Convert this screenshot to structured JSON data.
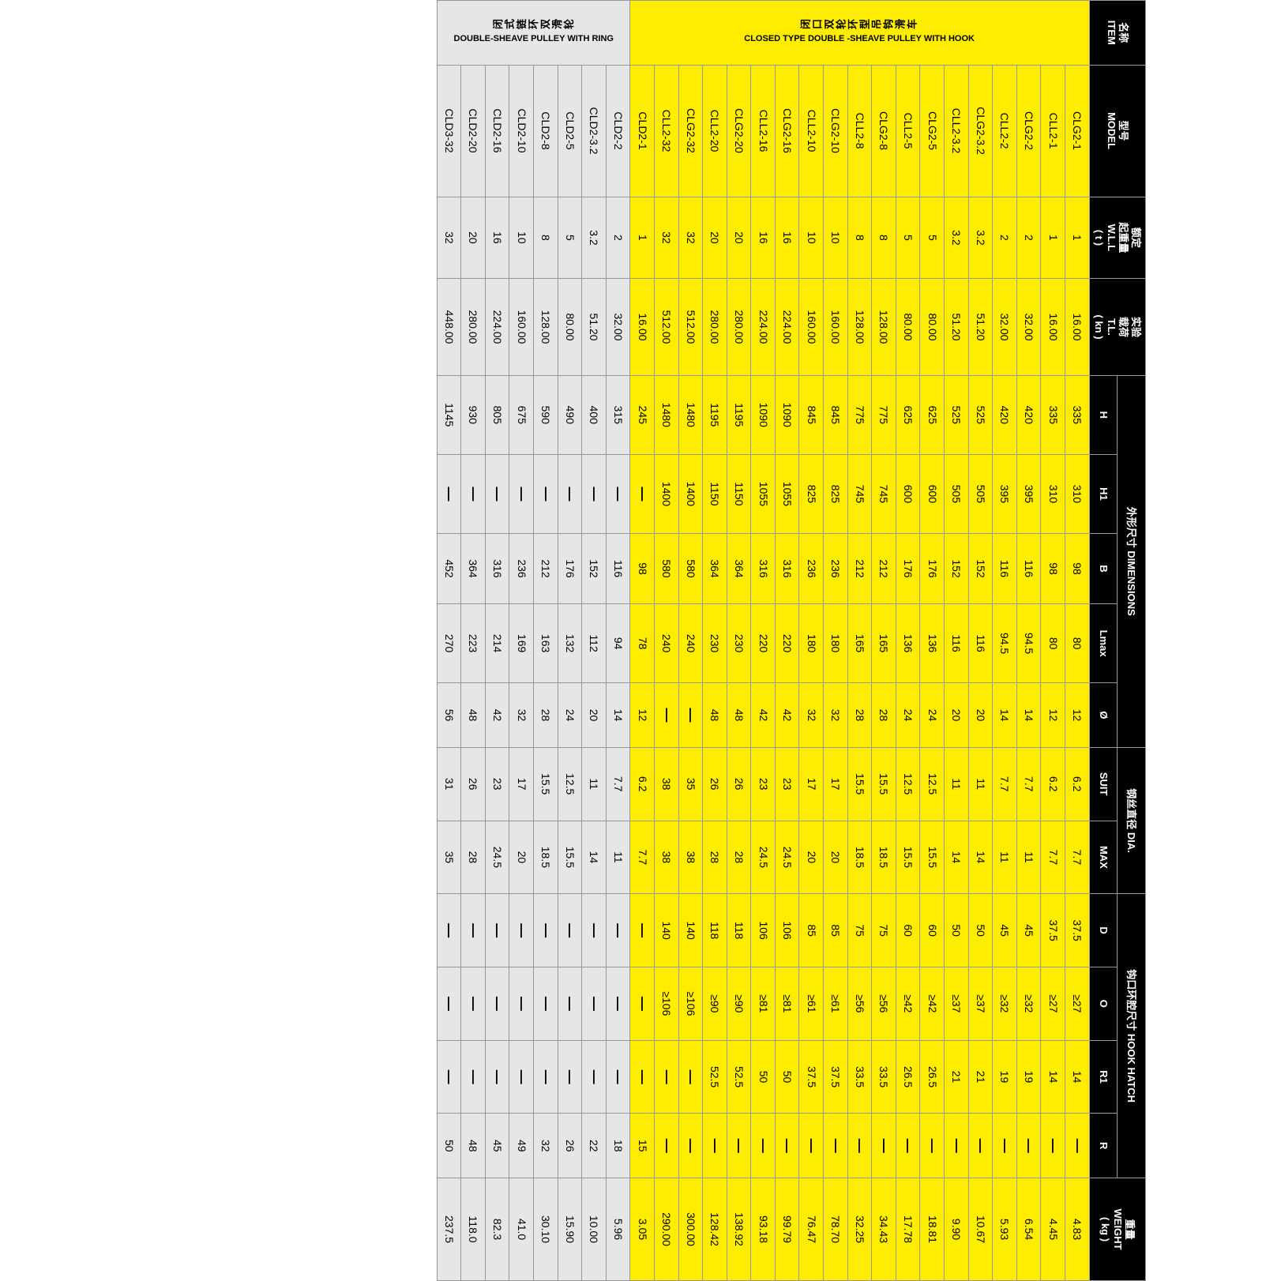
{
  "colors": {
    "header_bg": "#000000",
    "header_fg": "#ffffff",
    "section_yellow": "#ffed00",
    "section_gray": "#e6e6e6",
    "border": "#999999"
  },
  "header": {
    "item": {
      "cn": "名称",
      "en": "ITEM"
    },
    "model": {
      "cn": "型号",
      "en": "MODEL"
    },
    "wll": {
      "cn": "额定\n起重量",
      "en": "W.L.L\n( t )"
    },
    "tl": {
      "cn": "实验\n载荷",
      "en": "T.L.\n( kn )"
    },
    "dims": {
      "cn": "外形尺寸",
      "en": "DIMENSIONS"
    },
    "H": "H",
    "H1": "H1",
    "B": "B",
    "Lmax": "Lmax",
    "dia": "Ø",
    "wire": {
      "cn": "钢丝直径",
      "en": "DIA."
    },
    "suit": "SUIT",
    "max": "MAX",
    "hook": {
      "cn": "钩口环腔尺寸",
      "en": "HOOK HATCH"
    },
    "D": "D",
    "O": "O",
    "R1": "R1",
    "R": "R",
    "weight": {
      "cn": "重量",
      "en": "WEIGHT\n( kg )"
    }
  },
  "sections": [
    {
      "class": "y",
      "label_cn": "闭口双轮环型吊钩滑车",
      "label_en": "CLOSED TYPE DOUBLE -SHEAVE PULLEY WITH HOOK",
      "rows": [
        {
          "model": "CLG2-1",
          "wll": "1",
          "tl": "16.00",
          "H": "335",
          "H1": "310",
          "B": "98",
          "Lmax": "80",
          "dia": "12",
          "suit": "6.2",
          "max": "7.7",
          "D": "37.5",
          "O": "≥27",
          "R1": "14",
          "R": "—",
          "wt": "4.83"
        },
        {
          "model": "CLL2-1",
          "wll": "1",
          "tl": "16.00",
          "H": "335",
          "H1": "310",
          "B": "98",
          "Lmax": "80",
          "dia": "12",
          "suit": "6.2",
          "max": "7.7",
          "D": "37.5",
          "O": "≥27",
          "R1": "14",
          "R": "—",
          "wt": "4.45"
        },
        {
          "model": "CLG2-2",
          "wll": "2",
          "tl": "32.00",
          "H": "420",
          "H1": "395",
          "B": "116",
          "Lmax": "94.5",
          "dia": "14",
          "suit": "7.7",
          "max": "11",
          "D": "45",
          "O": "≥32",
          "R1": "19",
          "R": "—",
          "wt": "6.54"
        },
        {
          "model": "CLL2-2",
          "wll": "2",
          "tl": "32.00",
          "H": "420",
          "H1": "395",
          "B": "116",
          "Lmax": "94.5",
          "dia": "14",
          "suit": "7.7",
          "max": "11",
          "D": "45",
          "O": "≥32",
          "R1": "19",
          "R": "—",
          "wt": "5.93"
        },
        {
          "model": "CLG2-3.2",
          "wll": "3.2",
          "tl": "51.20",
          "H": "525",
          "H1": "505",
          "B": "152",
          "Lmax": "116",
          "dia": "20",
          "suit": "11",
          "max": "14",
          "D": "50",
          "O": "≥37",
          "R1": "21",
          "R": "—",
          "wt": "10.67"
        },
        {
          "model": "CLL2-3.2",
          "wll": "3.2",
          "tl": "51.20",
          "H": "525",
          "H1": "505",
          "B": "152",
          "Lmax": "116",
          "dia": "20",
          "suit": "11",
          "max": "14",
          "D": "50",
          "O": "≥37",
          "R1": "21",
          "R": "—",
          "wt": "9.90"
        },
        {
          "model": "CLG2-5",
          "wll": "5",
          "tl": "80.00",
          "H": "625",
          "H1": "600",
          "B": "176",
          "Lmax": "136",
          "dia": "24",
          "suit": "12.5",
          "max": "15.5",
          "D": "60",
          "O": "≥42",
          "R1": "26.5",
          "R": "—",
          "wt": "18.81"
        },
        {
          "model": "CLL2-5",
          "wll": "5",
          "tl": "80.00",
          "H": "625",
          "H1": "600",
          "B": "176",
          "Lmax": "136",
          "dia": "24",
          "suit": "12.5",
          "max": "15.5",
          "D": "60",
          "O": "≥42",
          "R1": "26.5",
          "R": "—",
          "wt": "17.78"
        },
        {
          "model": "CLG2-8",
          "wll": "8",
          "tl": "128.00",
          "H": "775",
          "H1": "745",
          "B": "212",
          "Lmax": "165",
          "dia": "28",
          "suit": "15.5",
          "max": "18.5",
          "D": "75",
          "O": "≥56",
          "R1": "33.5",
          "R": "—",
          "wt": "34.43"
        },
        {
          "model": "CLL2-8",
          "wll": "8",
          "tl": "128.00",
          "H": "775",
          "H1": "745",
          "B": "212",
          "Lmax": "165",
          "dia": "28",
          "suit": "15.5",
          "max": "18.5",
          "D": "75",
          "O": "≥56",
          "R1": "33.5",
          "R": "—",
          "wt": "32.25"
        },
        {
          "model": "CLG2-10",
          "wll": "10",
          "tl": "160.00",
          "H": "845",
          "H1": "825",
          "B": "236",
          "Lmax": "180",
          "dia": "32",
          "suit": "17",
          "max": "20",
          "D": "85",
          "O": "≥61",
          "R1": "37.5",
          "R": "—",
          "wt": "78.70"
        },
        {
          "model": "CLL2-10",
          "wll": "10",
          "tl": "160.00",
          "H": "845",
          "H1": "825",
          "B": "236",
          "Lmax": "180",
          "dia": "32",
          "suit": "17",
          "max": "20",
          "D": "85",
          "O": "≥61",
          "R1": "37.5",
          "R": "—",
          "wt": "76.47"
        },
        {
          "model": "CLG2-16",
          "wll": "16",
          "tl": "224.00",
          "H": "1090",
          "H1": "1055",
          "B": "316",
          "Lmax": "220",
          "dia": "42",
          "suit": "23",
          "max": "24.5",
          "D": "106",
          "O": "≥81",
          "R1": "50",
          "R": "—",
          "wt": "99.79"
        },
        {
          "model": "CLL2-16",
          "wll": "16",
          "tl": "224.00",
          "H": "1090",
          "H1": "1055",
          "B": "316",
          "Lmax": "220",
          "dia": "42",
          "suit": "23",
          "max": "24.5",
          "D": "106",
          "O": "≥81",
          "R1": "50",
          "R": "—",
          "wt": "93.18"
        },
        {
          "model": "CLG2-20",
          "wll": "20",
          "tl": "280.00",
          "H": "1195",
          "H1": "1150",
          "B": "364",
          "Lmax": "230",
          "dia": "48",
          "suit": "26",
          "max": "28",
          "D": "118",
          "O": "≥90",
          "R1": "52.5",
          "R": "—",
          "wt": "138.92"
        },
        {
          "model": "CLL2-20",
          "wll": "20",
          "tl": "280.00",
          "H": "1195",
          "H1": "1150",
          "B": "364",
          "Lmax": "230",
          "dia": "48",
          "suit": "26",
          "max": "28",
          "D": "118",
          "O": "≥90",
          "R1": "52.5",
          "R": "—",
          "wt": "128.42"
        },
        {
          "model": "CLG2-32",
          "wll": "32",
          "tl": "512.00",
          "H": "1480",
          "H1": "1400",
          "B": "580",
          "Lmax": "240",
          "dia": "—",
          "suit": "35",
          "max": "38",
          "D": "140",
          "O": "≥106",
          "R1": "—",
          "R": "—",
          "wt": "300.00"
        },
        {
          "model": "CLL2-32",
          "wll": "32",
          "tl": "512.00",
          "H": "1480",
          "H1": "1400",
          "B": "580",
          "Lmax": "240",
          "dia": "—",
          "suit": "38",
          "max": "38",
          "D": "140",
          "O": "≥106",
          "R1": "—",
          "R": "—",
          "wt": "290.00"
        },
        {
          "model": "CLD2-1",
          "wll": "1",
          "tl": "16.00",
          "H": "245",
          "H1": "—",
          "B": "98",
          "Lmax": "78",
          "dia": "12",
          "suit": "6.2",
          "max": "7.7",
          "D": "—",
          "O": "—",
          "R1": "—",
          "R": "15",
          "wt": "3.05"
        }
      ]
    },
    {
      "class": "g",
      "label_cn": "闭式链环双滑轮",
      "label_en": "DOUBLE-SHEAVE PULLEY WITH RING",
      "rows": [
        {
          "model": "CLD2-2",
          "wll": "2",
          "tl": "32.00",
          "H": "315",
          "H1": "—",
          "B": "116",
          "Lmax": "94",
          "dia": "14",
          "suit": "7.7",
          "max": "11",
          "D": "—",
          "O": "—",
          "R1": "—",
          "R": "18",
          "wt": "5.96"
        },
        {
          "model": "CLD2-3.2",
          "wll": "3.2",
          "tl": "51.20",
          "H": "400",
          "H1": "—",
          "B": "152",
          "Lmax": "112",
          "dia": "20",
          "suit": "11",
          "max": "14",
          "D": "—",
          "O": "—",
          "R1": "—",
          "R": "22",
          "wt": "10.00"
        },
        {
          "model": "CLD2-5",
          "wll": "5",
          "tl": "80.00",
          "H": "490",
          "H1": "—",
          "B": "176",
          "Lmax": "132",
          "dia": "24",
          "suit": "12.5",
          "max": "15.5",
          "D": "—",
          "O": "—",
          "R1": "—",
          "R": "26",
          "wt": "15.90"
        },
        {
          "model": "CLD2-8",
          "wll": "8",
          "tl": "128.00",
          "H": "590",
          "H1": "—",
          "B": "212",
          "Lmax": "163",
          "dia": "28",
          "suit": "15.5",
          "max": "18.5",
          "D": "—",
          "O": "—",
          "R1": "—",
          "R": "32",
          "wt": "30.10"
        },
        {
          "model": "CLD2-10",
          "wll": "10",
          "tl": "160.00",
          "H": "675",
          "H1": "—",
          "B": "236",
          "Lmax": "169",
          "dia": "32",
          "suit": "17",
          "max": "20",
          "D": "—",
          "O": "—",
          "R1": "—",
          "R": "49",
          "wt": "41.0"
        },
        {
          "model": "CLD2-16",
          "wll": "16",
          "tl": "224.00",
          "H": "805",
          "H1": "—",
          "B": "316",
          "Lmax": "214",
          "dia": "42",
          "suit": "23",
          "max": "24.5",
          "D": "—",
          "O": "—",
          "R1": "—",
          "R": "45",
          "wt": "82.3"
        },
        {
          "model": "CLD2-20",
          "wll": "20",
          "tl": "280.00",
          "H": "930",
          "H1": "—",
          "B": "364",
          "Lmax": "223",
          "dia": "48",
          "suit": "26",
          "max": "28",
          "D": "—",
          "O": "—",
          "R1": "—",
          "R": "48",
          "wt": "118.0"
        },
        {
          "model": "CLD3-32",
          "wll": "32",
          "tl": "448.00",
          "H": "1145",
          "H1": "—",
          "B": "452",
          "Lmax": "270",
          "dia": "56",
          "suit": "31",
          "max": "35",
          "D": "—",
          "O": "—",
          "R1": "—",
          "R": "50",
          "wt": "237.5"
        }
      ]
    }
  ]
}
